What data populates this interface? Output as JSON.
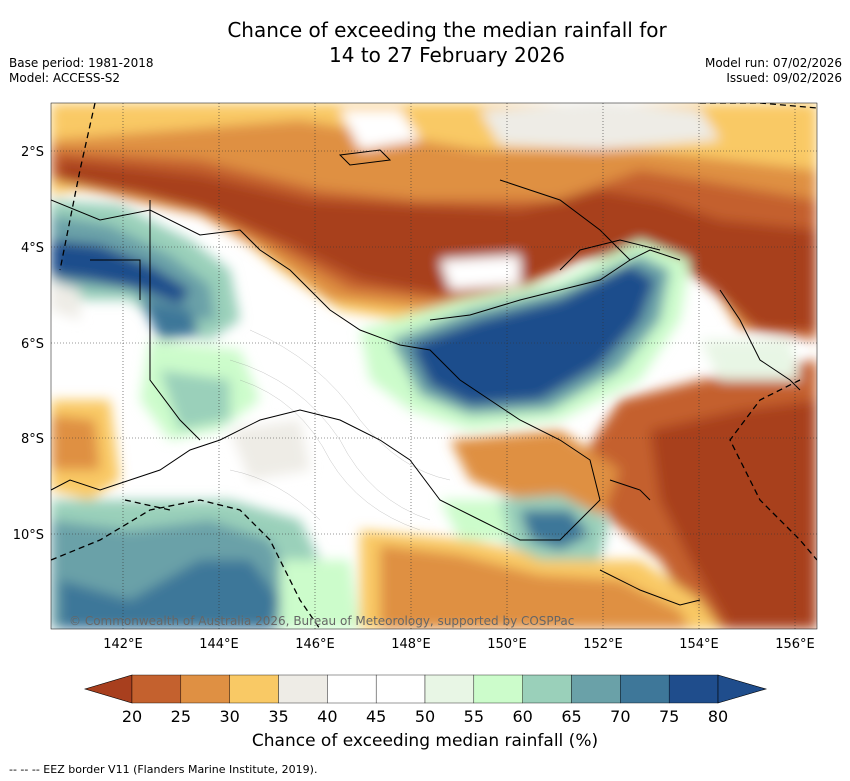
{
  "title": {
    "line1": "Chance of exceeding the median rainfall for",
    "line2": "14 to 27 February 2026"
  },
  "meta": {
    "base_period": "Base period: 1981-2018",
    "model": "Model: ACCESS-S2",
    "model_run": "Model run: 07/02/2026",
    "issued": "Issued: 09/02/2026"
  },
  "map": {
    "lat_labels": [
      "2°S",
      "4°S",
      "6°S",
      "8°S",
      "10°S"
    ],
    "lon_labels": [
      "142°E",
      "144°E",
      "146°E",
      "148°E",
      "150°E",
      "152°E",
      "154°E",
      "156°E"
    ],
    "copyright": "© Commonwealth of Australia 2026, Bureau of Meteorology, supported by COSPPac"
  },
  "colorbar": {
    "ticks": [
      "20",
      "25",
      "30",
      "35",
      "40",
      "45",
      "50",
      "55",
      "60",
      "65",
      "70",
      "75",
      "80"
    ],
    "colors": [
      "#a83f1e",
      "#c4612e",
      "#df9043",
      "#f9c965",
      "#eeece6",
      "#ffffff",
      "#ffffff",
      "#e8f6e5",
      "#ccfccb",
      "#9ad0ba",
      "#6aa1a8",
      "#3e7799",
      "#1f4d8c"
    ],
    "label": "Chance of exceeding median rainfall (%)"
  },
  "footer": {
    "eez": "-- -- -- EEZ border V11 (Flanders Marine Institute, 2019)."
  }
}
